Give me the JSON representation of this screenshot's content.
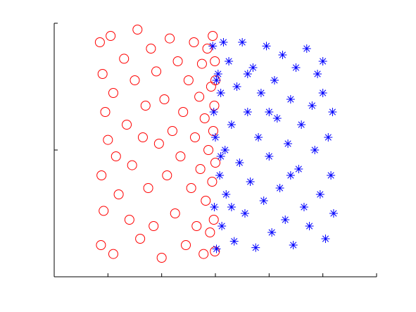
{
  "chart_data": {
    "type": "scatter",
    "xlim": [
      0,
      6
    ],
    "xticks": [
      0,
      1,
      2,
      3,
      4,
      5,
      6
    ],
    "ylim": [
      -1,
      1
    ],
    "yticks": [
      -1,
      0,
      1
    ],
    "series": [
      {
        "color": "#ff0000",
        "marker": "o",
        "x": [
          0.85,
          0.9,
          0.95,
          1.0,
          0.88,
          0.92,
          0.87,
          1.05,
          1.1,
          1.15,
          1.2,
          1.1,
          1.3,
          1.35,
          1.4,
          1.45,
          1.5,
          1.55,
          1.6,
          1.65,
          1.7,
          1.75,
          1.8,
          1.85,
          1.9,
          1.95,
          2.0,
          2.05,
          2.1,
          2.15,
          2.2,
          2.25,
          2.3,
          2.35,
          2.4,
          2.45,
          2.5,
          2.55,
          2.6,
          2.62,
          2.65,
          2.7,
          2.72,
          2.75,
          2.78,
          2.8,
          2.82,
          2.85,
          2.87,
          2.9,
          2.92,
          2.94,
          2.95,
          2.96,
          2.97,
          2.98,
          2.99,
          2.99,
          3.0,
          3.0
        ],
        "values": [
          0.85,
          0.6,
          0.3,
          0.08,
          -0.2,
          -0.48,
          -0.75,
          0.9,
          0.45,
          -0.05,
          -0.35,
          -0.82,
          0.72,
          0.2,
          -0.55,
          -0.12,
          0.55,
          0.95,
          -0.7,
          0.1,
          0.35,
          -0.3,
          0.8,
          -0.6,
          0.62,
          0.05,
          -0.85,
          0.4,
          -0.2,
          0.88,
          0.15,
          -0.5,
          0.7,
          -0.05,
          0.3,
          -0.75,
          0.55,
          -0.3,
          0.85,
          0.1,
          -0.6,
          0.42,
          -0.15,
          0.68,
          -0.82,
          0.25,
          -0.4,
          0.8,
          0.0,
          -0.65,
          0.5,
          -0.25,
          0.9,
          0.15,
          -0.55,
          0.35,
          -0.8,
          0.7,
          -0.1,
          0.55
        ]
      },
      {
        "color": "#0000ff",
        "marker": "*",
        "x": [
          2.95,
          2.97,
          2.98,
          3.0,
          3.02,
          3.05,
          3.08,
          3.1,
          3.12,
          3.15,
          3.18,
          3.2,
          3.25,
          3.3,
          3.35,
          3.4,
          3.45,
          3.5,
          3.55,
          3.6,
          3.65,
          3.7,
          3.75,
          3.8,
          3.85,
          3.9,
          3.95,
          4.0,
          4.05,
          4.1,
          4.15,
          4.2,
          4.25,
          4.3,
          4.35,
          4.4,
          4.45,
          4.5,
          4.55,
          4.6,
          4.65,
          4.7,
          4.75,
          4.8,
          4.85,
          4.9,
          4.95,
          5.0,
          5.05,
          5.1,
          5.15,
          5.18,
          5.2,
          3.02,
          3.1,
          3.3,
          3.6,
          4.0,
          4.4,
          5.0
        ],
        "values": [
          0.82,
          0.3,
          -0.45,
          0.1,
          -0.78,
          0.6,
          -0.2,
          0.45,
          -0.6,
          0.85,
          0.0,
          -0.35,
          0.7,
          0.2,
          -0.72,
          0.5,
          -0.1,
          0.85,
          -0.5,
          0.3,
          -0.25,
          0.65,
          -0.77,
          0.1,
          0.45,
          -0.4,
          0.82,
          -0.05,
          -0.65,
          0.55,
          0.25,
          -0.3,
          0.75,
          -0.55,
          0.05,
          0.4,
          -0.75,
          0.65,
          -0.15,
          0.2,
          -0.45,
          0.8,
          -0.6,
          0.35,
          0.0,
          0.6,
          -0.35,
          0.7,
          -0.7,
          0.1,
          -0.2,
          0.3,
          -0.5,
          0.55,
          -0.05,
          -0.45,
          0.6,
          0.3,
          -0.2,
          0.45
        ]
      }
    ]
  }
}
